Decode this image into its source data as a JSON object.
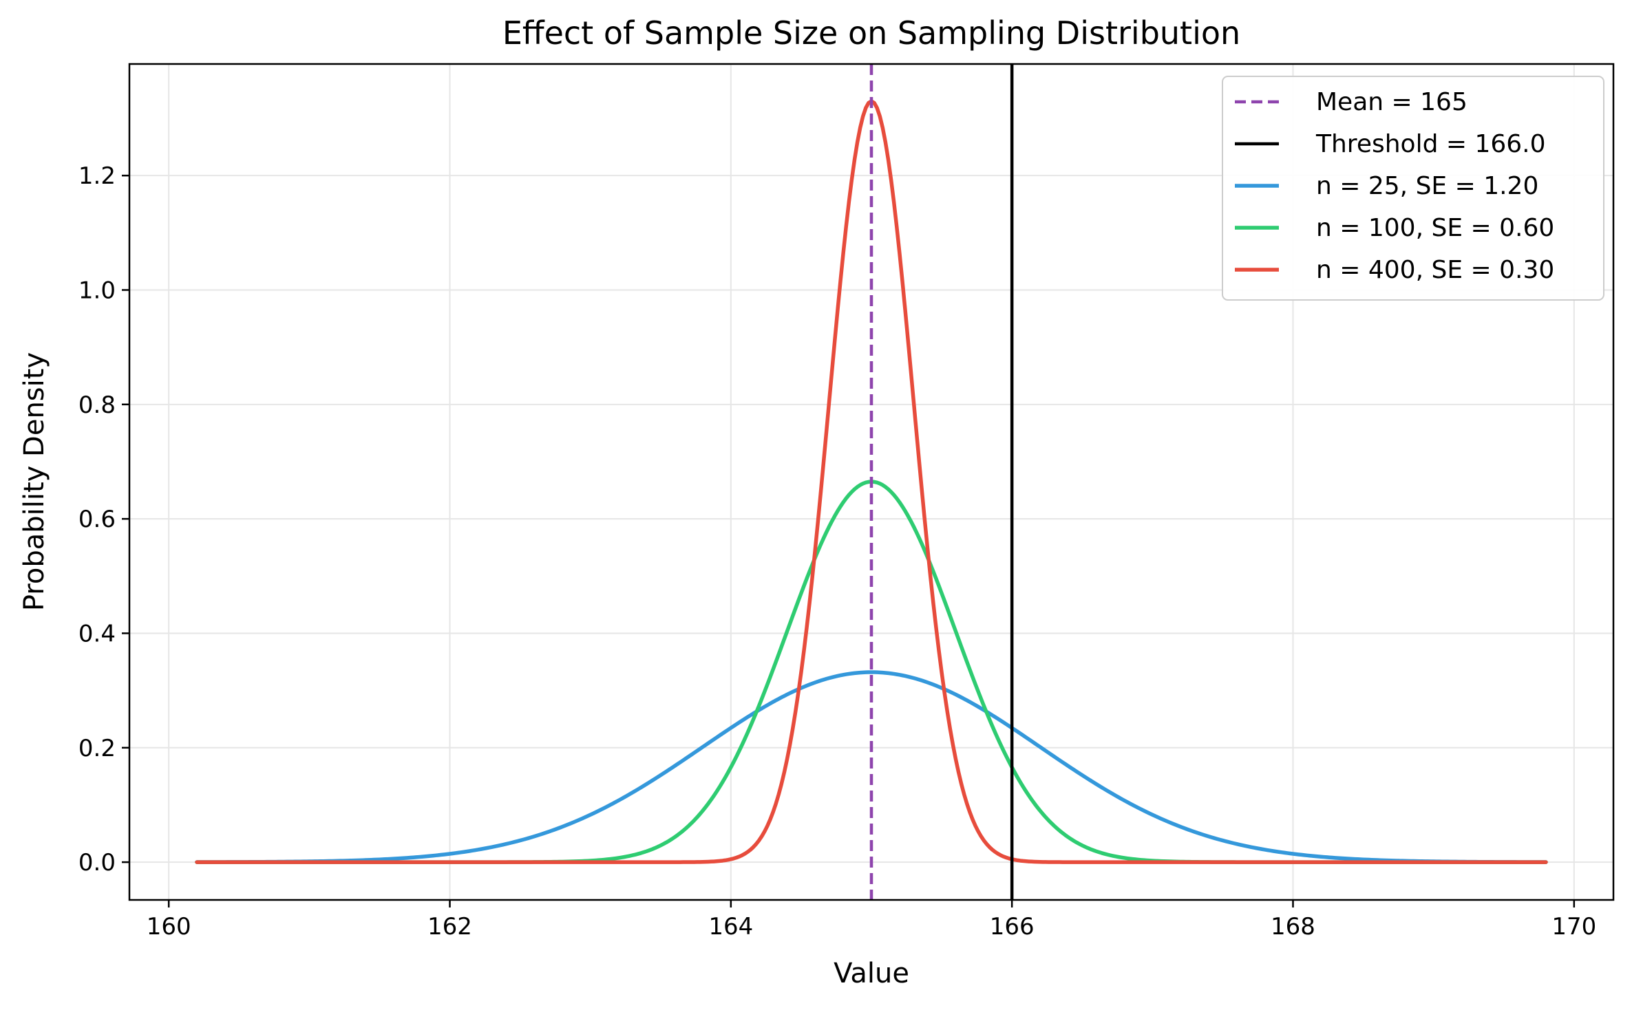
{
  "chart_data": {
    "type": "line",
    "title": "Effect of Sample Size on Sampling Distribution",
    "xlabel": "Value",
    "ylabel": "Probability Density",
    "xlim": [
      159.72,
      170.28
    ],
    "ylim": [
      -0.066,
      1.395
    ],
    "xticks": [
      160,
      162,
      164,
      166,
      168,
      170
    ],
    "xtick_labels": [
      "160",
      "162",
      "164",
      "166",
      "168",
      "170"
    ],
    "yticks": [
      0.0,
      0.2,
      0.4,
      0.6,
      0.8,
      1.0,
      1.2
    ],
    "ytick_labels": [
      "0.0",
      "0.2",
      "0.4",
      "0.6",
      "0.8",
      "1.0",
      "1.2"
    ],
    "grid": true,
    "legend_position": "top-right",
    "x_range": [
      160.2,
      169.8
    ],
    "mean_line": {
      "value": 165,
      "label": "Mean = 165",
      "color": "#8e44ad",
      "style": "dashed"
    },
    "threshold_line": {
      "value": 166.0,
      "label": "Threshold = 166.0",
      "color": "#000000",
      "style": "solid"
    },
    "series": [
      {
        "name": "n = 25, SE = 1.20",
        "mean": 165,
        "se": 1.2,
        "peak": 0.332,
        "color": "#3498db"
      },
      {
        "name": "n = 100, SE = 0.60",
        "mean": 165,
        "se": 0.6,
        "peak": 0.665,
        "color": "#2ecc71"
      },
      {
        "name": "n = 400, SE = 0.30",
        "mean": 165,
        "se": 0.3,
        "peak": 1.33,
        "color": "#e74c3c"
      }
    ]
  }
}
